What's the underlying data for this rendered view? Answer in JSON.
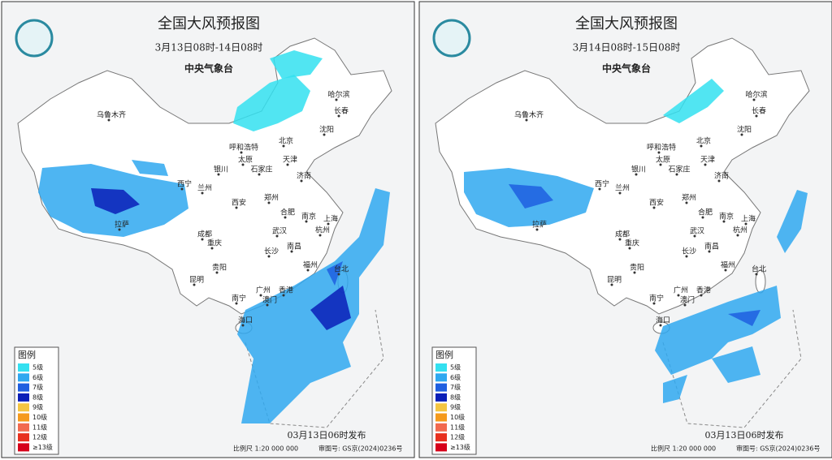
{
  "panels": [
    {
      "title": "全国大风预报图",
      "period": "3月13日08时-14日08时",
      "issuer": "中央气象台",
      "issued": "03月13日06时发布",
      "scale": "比例尺  1:20 000 000",
      "approval": "审图号: GS京(2024)0236号"
    },
    {
      "title": "全国大风预报图",
      "period": "3月14日08时-15日08时",
      "issuer": "中央气象台",
      "issued": "03月13日06时发布",
      "scale": "比例尺  1:20 000 000",
      "approval": "审图号: GS京(2024)0236号"
    }
  ],
  "cities": [
    "乌鲁木齐",
    "哈尔滨",
    "长春",
    "沈阳",
    "北京",
    "呼和浩特",
    "天津",
    "太原",
    "石家庄",
    "银川",
    "济南",
    "西宁",
    "兰州",
    "西安",
    "郑州",
    "拉萨",
    "合肥",
    "南京",
    "上海",
    "成都",
    "武汉",
    "杭州",
    "重庆",
    "南昌",
    "长沙",
    "贵阳",
    "福州",
    "台北",
    "昆明",
    "广州",
    "香港",
    "澳门",
    "南宁",
    "海口"
  ],
  "legend": {
    "title": "图例",
    "items": [
      {
        "label": "5级",
        "color": "#33e0f0"
      },
      {
        "label": "6级",
        "color": "#2fa8f0"
      },
      {
        "label": "7级",
        "color": "#1f5fe0"
      },
      {
        "label": "8级",
        "color": "#0a1fb8"
      },
      {
        "label": "9级",
        "color": "#f4c542"
      },
      {
        "label": "10级",
        "color": "#f59a1c"
      },
      {
        "label": "11级",
        "color": "#f26a4f"
      },
      {
        "label": "12级",
        "color": "#e8301f"
      },
      {
        "label": "≥13级",
        "color": "#d6001a"
      }
    ]
  }
}
